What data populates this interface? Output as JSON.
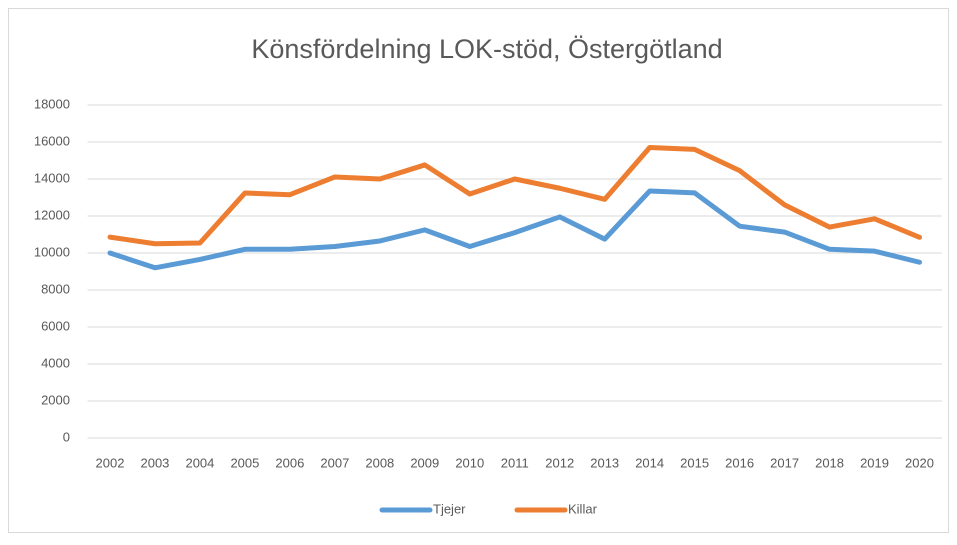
{
  "chart_data": {
    "type": "line",
    "title": "Könsfördelning LOK-stöd, Östergötland",
    "categories": [
      "2002",
      "2003",
      "2004",
      "2005",
      "2006",
      "2007",
      "2008",
      "2009",
      "2010",
      "2011",
      "2012",
      "2013",
      "2014",
      "2015",
      "2016",
      "2017",
      "2018",
      "2019",
      "2020"
    ],
    "series": [
      {
        "name": "Tjejer",
        "color": "#5b9bd5",
        "values": [
          10000,
          9200,
          9650,
          10200,
          10200,
          10350,
          10650,
          11250,
          10350,
          11100,
          11950,
          10750,
          13350,
          13250,
          11450,
          11130,
          10200,
          10100,
          9500
        ]
      },
      {
        "name": "Killar",
        "color": "#ed7d31",
        "values": [
          10860,
          10500,
          10540,
          13240,
          13150,
          14110,
          14000,
          14760,
          13190,
          14000,
          13500,
          12900,
          15700,
          15600,
          14450,
          12600,
          11400,
          11850,
          10850
        ]
      }
    ],
    "ylim": [
      0,
      18000
    ],
    "yticks": [
      0,
      2000,
      4000,
      6000,
      8000,
      10000,
      12000,
      14000,
      16000,
      18000
    ],
    "grid": true,
    "legend": "bottom"
  }
}
